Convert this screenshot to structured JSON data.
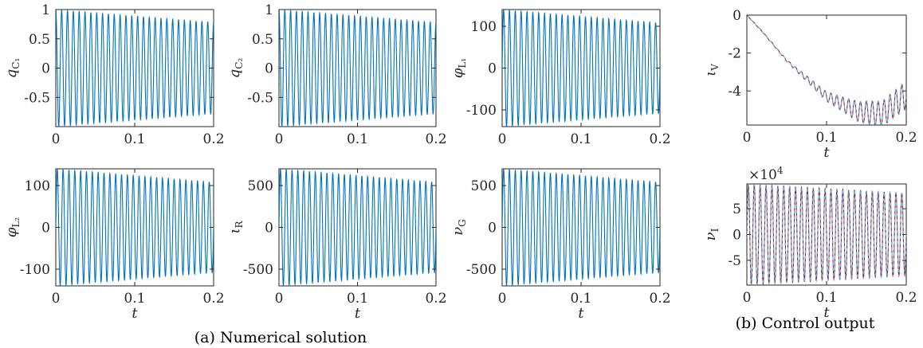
{
  "captions": {
    "left": "(a)  Numerical solution",
    "right": "(b)  Control output"
  },
  "colors": {
    "blue": "#0072BD",
    "red": "#A2142F",
    "dashed": "#4DBEEE"
  },
  "chart_data": [
    {
      "id": "qc1",
      "type": "line",
      "ylabel": "q",
      "ylabel_sub": "C₁",
      "xlabel": "",
      "xlim": [
        0,
        0.2
      ],
      "ylim": [
        -1,
        1
      ],
      "xticks": [
        "0",
        "0.1",
        "0.2"
      ],
      "yticks": [
        "1",
        "0.5",
        "0",
        "-0.5"
      ],
      "series": [
        {
          "freq_hz": 135,
          "amp_start": 1,
          "amp_end": 0.78,
          "phase": "cos",
          "color": "blue"
        }
      ]
    },
    {
      "id": "qc2",
      "type": "line",
      "ylabel": "q",
      "ylabel_sub": "C₂",
      "xlabel": "",
      "xlim": [
        0,
        0.2
      ],
      "ylim": [
        -1,
        1
      ],
      "xticks": [
        "0",
        "0.1",
        "0.2"
      ],
      "yticks": [
        "1",
        "0.5",
        "0",
        "-0.5"
      ],
      "series": [
        {
          "freq_hz": 135,
          "amp_start": 1,
          "amp_end": 0.78,
          "phase": "cos",
          "color": "blue"
        }
      ]
    },
    {
      "id": "phil1",
      "type": "line",
      "ylabel": "φ",
      "ylabel_sub": "L₁",
      "xlabel": "",
      "xlim": [
        0,
        0.2
      ],
      "ylim": [
        -140,
        140
      ],
      "xticks": [
        "0",
        "0.1",
        "0.2"
      ],
      "yticks": [
        "100",
        "0",
        "-100"
      ],
      "series": [
        {
          "freq_hz": 135,
          "amp_start": 140,
          "amp_end": 108,
          "phase": "sin",
          "color": "blue"
        }
      ]
    },
    {
      "id": "phil2",
      "type": "line",
      "ylabel": "φ",
      "ylabel_sub": "L₂",
      "xlabel": "t",
      "xlim": [
        0,
        0.2
      ],
      "ylim": [
        -140,
        140
      ],
      "xticks": [
        "0",
        "0.1",
        "0.2"
      ],
      "yticks": [
        "100",
        "0",
        "-100"
      ],
      "series": [
        {
          "freq_hz": 135,
          "amp_start": 140,
          "amp_end": 108,
          "phase": "sin",
          "color": "blue"
        }
      ]
    },
    {
      "id": "iR",
      "type": "line",
      "ylabel": "ι",
      "ylabel_sub": "R",
      "xlabel": "t",
      "xlim": [
        0,
        0.2
      ],
      "ylim": [
        -700,
        700
      ],
      "xticks": [
        "0",
        "0.1",
        "0.2"
      ],
      "yticks": [
        "500",
        "0",
        "-500"
      ],
      "series": [
        {
          "freq_hz": 135,
          "amp_start": 700,
          "amp_end": 540,
          "phase": "sin",
          "color": "blue"
        }
      ]
    },
    {
      "id": "nuG",
      "type": "line",
      "ylabel": "ν",
      "ylabel_sub": "G",
      "xlabel": "t",
      "xlim": [
        0,
        0.2
      ],
      "ylim": [
        -700,
        700
      ],
      "xticks": [
        "0",
        "0.1",
        "0.2"
      ],
      "yticks": [
        "500",
        "0",
        "-500"
      ],
      "series": [
        {
          "freq_hz": 135,
          "amp_start": 700,
          "amp_end": 540,
          "phase": "sin",
          "color": "blue"
        }
      ]
    },
    {
      "id": "iV",
      "type": "line",
      "ylabel": "ι",
      "ylabel_sub": "V",
      "xlabel": "t",
      "xlim": [
        0,
        0.2
      ],
      "ylim": [
        -5.8,
        0
      ],
      "xticks": [
        "0",
        "0.1",
        "0.2"
      ],
      "yticks": [
        "0",
        "-2",
        "-4"
      ],
      "trend": [
        [
          0,
          0
        ],
        [
          0.02,
          -0.9
        ],
        [
          0.05,
          -2.4
        ],
        [
          0.1,
          -4.3
        ],
        [
          0.14,
          -5.1
        ],
        [
          0.17,
          -5.2
        ],
        [
          0.2,
          -4.2
        ]
      ],
      "ripple": {
        "freq_hz": 135,
        "amp": [
          0,
          0.05,
          0.25,
          0.6,
          0.75
        ]
      },
      "series": [
        {
          "name": "",
          "color": "red",
          "dash": false
        },
        {
          "name": "",
          "color": "dashed",
          "dash": true
        }
      ]
    },
    {
      "id": "nuI",
      "type": "line",
      "ylabel": "ν",
      "ylabel_sub": "I",
      "xlabel": "t",
      "multiplier": "×10",
      "multiplier_exp": "4",
      "xlim": [
        0,
        0.2
      ],
      "ylim": [
        -9.8,
        9.8
      ],
      "xticks": [
        "0",
        "0.1",
        "0.2"
      ],
      "yticks": [
        "5",
        "0",
        "-5"
      ],
      "series": [
        {
          "freq_hz": 135,
          "amp_start": 9.8,
          "amp_end": 8.0,
          "phase": "sin",
          "color": "red",
          "dash": false
        },
        {
          "freq_hz": 135,
          "amp_start": 9.8,
          "amp_end": 8.0,
          "phase": "sin",
          "color": "dashed",
          "dash": true
        }
      ]
    }
  ]
}
